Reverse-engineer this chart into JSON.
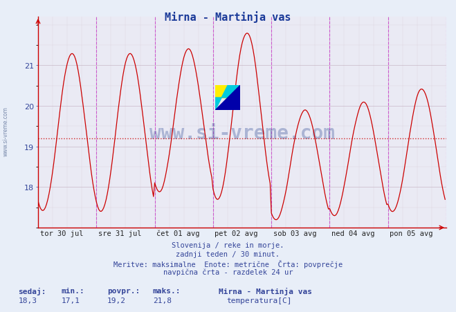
{
  "title": "Mirna - Martinja vas",
  "title_color": "#1a3a99",
  "bg_color": "#e8eef8",
  "plot_bg_color": "#eaeaf4",
  "line_color": "#cc0000",
  "avg_line_color": "#cc0000",
  "avg_value": 19.2,
  "y_min": 17.0,
  "y_max": 22.2,
  "y_ticks": [
    18,
    19,
    20,
    21
  ],
  "x_labels": [
    "tor 30 jul",
    "sre 31 jul",
    "čet 01 avg",
    "pet 02 avg",
    "sob 03 avg",
    "ned 04 avg",
    "pon 05 avg"
  ],
  "n_days": 7,
  "points_per_day": 48,
  "subtitle_lines": [
    "Slovenija / reke in morje.",
    "zadnji teden / 30 minut.",
    "Meritve: maksimalne  Enote: metrične  Črta: povprečje",
    "navpična črta - razdelek 24 ur"
  ],
  "watermark": "www.si-vreme.com",
  "stats_labels": [
    "sedaj:",
    "min.:",
    "povpr.:",
    "maks.:"
  ],
  "stats_values": [
    "18,3",
    "17,1",
    "19,2",
    "21,8"
  ],
  "legend_title": "Mirna - Martinja vas",
  "legend_color": "#cc0000",
  "legend_label": "temperatura[C]",
  "vline_color": "#cc44cc",
  "sidebar_text": "www.si-vreme.com",
  "sidebar_color": "#7788aa",
  "grid_major_color": "#c8b8c8",
  "grid_minor_color": "#dcd4dc",
  "spine_color": "#cc0000",
  "tick_color": "#334499",
  "text_color": "#334499"
}
